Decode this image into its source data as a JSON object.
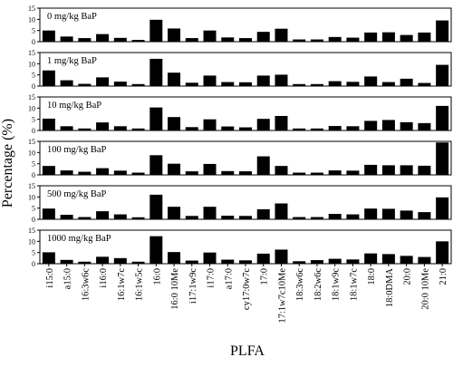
{
  "chart_data": {
    "type": "bar",
    "ylabel": "Percentage (%)",
    "xlabel": "PLFA",
    "ylim": [
      0,
      15
    ],
    "yticks": [
      0,
      5,
      10,
      15
    ],
    "categories": [
      "i15:0",
      "a15:0",
      "16:3w6c",
      "i16:0",
      "16:1w7c",
      "16:1w5c",
      "16:0",
      "16:0 10Me",
      "i17:1w9c",
      "i17:0",
      "a17:0",
      "cy17:0w7c",
      "17:0",
      "17:1w7c10Me",
      "18:3w6c",
      "18:2w6c",
      "18:1w9c",
      "18:1w7c",
      "18:0",
      "18:0DMA",
      "20:0",
      "20:0 10Me",
      "21:0"
    ],
    "series": [
      {
        "name": "0 mg/kg BaP",
        "values": [
          5.0,
          2.3,
          1.6,
          3.4,
          1.7,
          0.8,
          9.8,
          5.9,
          1.6,
          5.0,
          1.9,
          1.6,
          4.4,
          5.8,
          1.0,
          1.0,
          2.1,
          1.8,
          4.1,
          4.2,
          3.0,
          4.1,
          9.5
        ]
      },
      {
        "name": "1 mg/kg BaP",
        "values": [
          7.0,
          2.6,
          1.0,
          3.9,
          2.0,
          0.9,
          12.2,
          6.0,
          1.5,
          4.7,
          1.8,
          1.7,
          4.7,
          5.1,
          0.9,
          0.9,
          2.2,
          1.9,
          4.3,
          1.8,
          3.3,
          1.4,
          9.5
        ]
      },
      {
        "name": "10 mg/kg BaP",
        "values": [
          5.3,
          1.9,
          0.9,
          3.6,
          1.9,
          0.9,
          10.3,
          6.0,
          1.5,
          5.0,
          1.8,
          1.4,
          5.2,
          6.5,
          0.9,
          0.9,
          2.0,
          1.9,
          4.3,
          4.7,
          3.7,
          3.3,
          11.0
        ]
      },
      {
        "name": "100 mg/kg BaP",
        "values": [
          4.0,
          2.0,
          1.4,
          3.0,
          1.9,
          1.0,
          8.8,
          5.0,
          1.6,
          4.9,
          1.7,
          1.6,
          8.3,
          4.0,
          1.0,
          1.0,
          2.0,
          1.9,
          4.5,
          4.3,
          4.3,
          4.1,
          14.5
        ]
      },
      {
        "name": "500 mg/kg BaP",
        "values": [
          4.8,
          2.0,
          1.0,
          3.6,
          2.2,
          0.9,
          11.0,
          5.6,
          1.5,
          5.6,
          1.6,
          1.5,
          4.5,
          7.1,
          1.0,
          1.0,
          2.4,
          2.2,
          4.8,
          4.7,
          3.9,
          3.2,
          9.8
        ]
      },
      {
        "name": "1000 mg/kg BaP",
        "values": [
          5.1,
          1.7,
          0.9,
          3.1,
          2.5,
          0.9,
          12.3,
          5.2,
          1.4,
          5.0,
          1.8,
          1.5,
          4.5,
          6.3,
          1.1,
          1.6,
          2.2,
          1.9,
          4.6,
          4.3,
          3.5,
          3.0,
          10.0
        ]
      }
    ],
    "grid": false,
    "legend": "inside-top-left"
  }
}
